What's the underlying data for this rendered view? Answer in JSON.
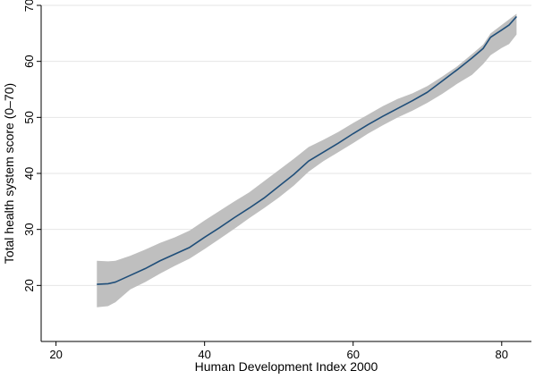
{
  "chart_data": {
    "type": "area",
    "xlabel": "Human Development Index 2000",
    "ylabel": "Total health system score (0–70)",
    "xlim": [
      18,
      84
    ],
    "ylim": [
      10,
      70
    ],
    "xticks": [
      20,
      40,
      60,
      80
    ],
    "yticks": [
      20,
      30,
      40,
      50,
      60,
      70
    ],
    "grid": "horizontal",
    "colors": {
      "line": "#1f4e79",
      "band": "#bfbfbf",
      "grid": "#e6e6e6"
    },
    "series": [
      {
        "kind": "line",
        "x": [
          25.5,
          27,
          28,
          30,
          32,
          34,
          36,
          38,
          40,
          42,
          44,
          46,
          48,
          50,
          52,
          54,
          56,
          58,
          60,
          62,
          64,
          66,
          68,
          70,
          72,
          74,
          76,
          77.5,
          78.5,
          80,
          81,
          82
        ],
        "values": [
          20.2,
          20.3,
          20.6,
          21.8,
          23.0,
          24.4,
          25.6,
          26.8,
          28.6,
          30.3,
          32.1,
          33.8,
          35.6,
          37.7,
          39.8,
          42.2,
          43.8,
          45.4,
          47.1,
          48.7,
          50.2,
          51.6,
          53.0,
          54.5,
          56.5,
          58.5,
          60.6,
          62.3,
          64.3,
          65.6,
          66.5,
          68.0
        ]
      },
      {
        "kind": "band",
        "x": [
          25.5,
          27,
          28,
          30,
          32,
          34,
          36,
          38,
          40,
          42,
          44,
          46,
          48,
          50,
          52,
          54,
          56,
          58,
          60,
          62,
          64,
          66,
          68,
          70,
          72,
          74,
          76,
          77.5,
          78.5,
          80,
          81,
          82
        ],
        "upper": [
          24.4,
          24.3,
          24.4,
          25.3,
          26.4,
          27.6,
          28.6,
          29.8,
          31.6,
          33.3,
          35.0,
          36.6,
          38.6,
          40.6,
          42.6,
          44.7,
          46.0,
          47.4,
          49.0,
          50.5,
          52.0,
          53.3,
          54.3,
          55.6,
          57.3,
          59.1,
          61.3,
          63.0,
          65.0,
          66.5,
          67.5,
          68.5
        ],
        "lower": [
          16.1,
          16.3,
          17.0,
          19.3,
          20.6,
          22.1,
          23.5,
          24.8,
          26.5,
          28.3,
          30.1,
          32.0,
          33.8,
          35.7,
          37.8,
          40.3,
          42.2,
          43.8,
          45.4,
          47.1,
          48.6,
          50.0,
          51.2,
          52.6,
          54.2,
          56.0,
          57.6,
          59.5,
          61.1,
          62.4,
          63.1,
          64.8
        ]
      }
    ]
  }
}
